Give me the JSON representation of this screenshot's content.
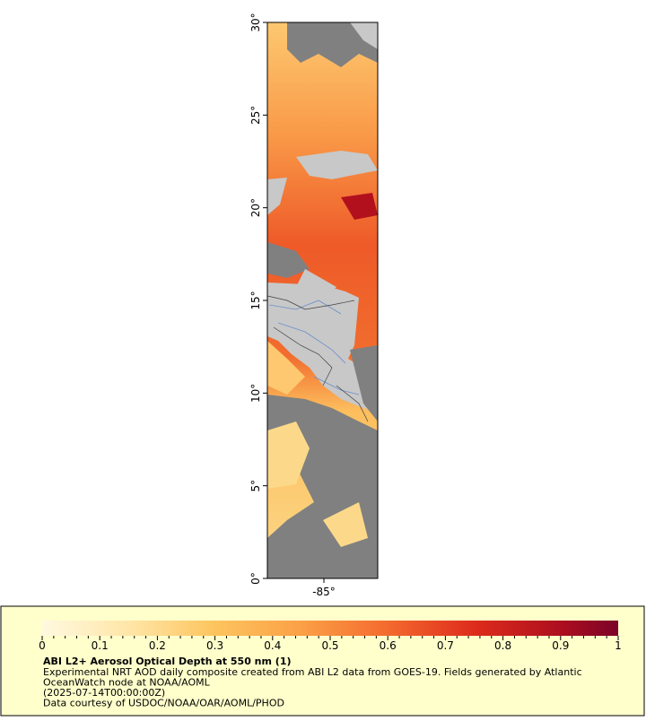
{
  "map": {
    "y_ticks": [
      "0°",
      "5°",
      "10°",
      "15°",
      "20°",
      "25°",
      "30°"
    ],
    "x_ticks": [
      "-85°"
    ]
  },
  "legend": {
    "colorbar_ticks": [
      "0",
      "0.1",
      "0.2",
      "0.3",
      "0.4",
      "0.5",
      "0.6",
      "0.7",
      "0.8",
      "0.9",
      "1"
    ],
    "title": "ABI L2+ Aerosol Optical Depth at 550 nm (1)",
    "lines": [
      "Experimental NRT AOD daily composite created from ABI L2 data from GOES-19. Fields generated by Atlantic",
      "OceanWatch node at NOAA/AOML",
      "(2025-07-14T00:00:00Z)",
      "Data courtesy of USDOC/NOAA/OAR/AOML/PHOD"
    ]
  }
}
